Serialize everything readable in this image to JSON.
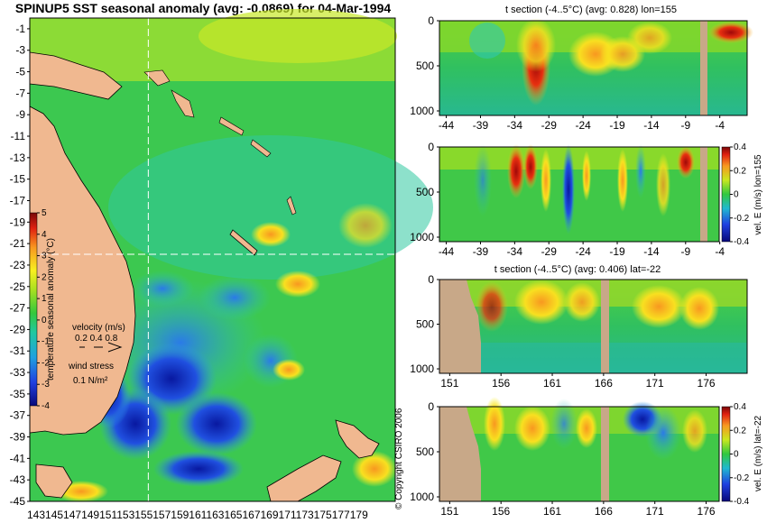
{
  "chart_data": [
    {
      "type": "heatmap",
      "id": "map",
      "title": "SPINUP5 SST seasonal anomaly (avg: -0.0869) for 04-Mar-1994",
      "xticks": [
        "143",
        "145",
        "147",
        "149",
        "151",
        "153",
        "155",
        "157",
        "159",
        "161",
        "163",
        "165",
        "167",
        "169",
        "171",
        "173",
        "175",
        "177",
        "179"
      ],
      "xtick_label": "143145147149151153155157159161163165167169171173175177179",
      "yticks": [
        "-1",
        "-3",
        "-5",
        "-7",
        "-9",
        "-11",
        "-13",
        "-15",
        "-17",
        "-19",
        "-21",
        "-23",
        "-25",
        "-27",
        "-29",
        "-31",
        "-33",
        "-35",
        "-37",
        "-39",
        "-41",
        "-43",
        "-45"
      ],
      "xlim": [
        143,
        180
      ],
      "ylim": [
        -45,
        0
      ],
      "colorbar": {
        "label": "temperature seasonal anomaly (°C)",
        "range": [
          -4,
          5
        ],
        "ticks": [
          "5",
          "4",
          "3",
          "2",
          "1",
          "0",
          "-1",
          "-2",
          "-3",
          "-4"
        ]
      },
      "crosshair": {
        "lon": 155,
        "lat": -22
      },
      "legend": {
        "velocity_label": "velocity (m/s)",
        "velocity_scale": "0.2 0.4 0.8",
        "wind_label": "wind stress",
        "wind_scale": "0.1 N/m²"
      }
    },
    {
      "type": "heatmap",
      "id": "section_t_lon",
      "title": "t section (-4..5°C) (avg: 0.828) lon=155",
      "xticks": [
        "-44",
        "-39",
        "-34",
        "-29",
        "-24",
        "-19",
        "-14",
        "-9",
        "-4"
      ],
      "xlim": [
        -45,
        0
      ],
      "yticks": [
        "0",
        "500",
        "1000"
      ],
      "ylim": [
        0,
        1050
      ]
    },
    {
      "type": "heatmap",
      "id": "section_v_lon",
      "title": "",
      "xticks": [
        "-44",
        "-39",
        "-34",
        "-29",
        "-24",
        "-19",
        "-14",
        "-9",
        "-4"
      ],
      "xlim": [
        -45,
        0
      ],
      "yticks": [
        "0",
        "500",
        "1000"
      ],
      "ylim": [
        0,
        1050
      ],
      "colorbar": {
        "label": "vel. E (m/s) lon=155",
        "range": [
          -0.4,
          0.4
        ],
        "ticks": [
          "0.4",
          "0.2",
          "0",
          "-0.2",
          "-0.4"
        ]
      }
    },
    {
      "type": "heatmap",
      "id": "section_t_lat",
      "title": "t section (-4..5°C) (avg: 0.406) lat=-22",
      "xticks": [
        "151",
        "156",
        "161",
        "166",
        "171",
        "176"
      ],
      "xlim": [
        150,
        180
      ],
      "yticks": [
        "0",
        "500",
        "1000"
      ],
      "ylim": [
        0,
        1050
      ]
    },
    {
      "type": "heatmap",
      "id": "section_v_lat",
      "title": "",
      "xticks": [
        "151",
        "156",
        "161",
        "166",
        "171",
        "176"
      ],
      "xlim": [
        150,
        180
      ],
      "yticks": [
        "0",
        "500",
        "1000"
      ],
      "ylim": [
        0,
        1050
      ],
      "colorbar": {
        "label": "vel. E (m/s) lat=-22",
        "range": [
          -0.4,
          0.4
        ],
        "ticks": [
          "0.4",
          "0.2",
          "0",
          "-0.2",
          "-0.4"
        ]
      }
    }
  ],
  "copyright": "© Copyright CSIRO 2006"
}
